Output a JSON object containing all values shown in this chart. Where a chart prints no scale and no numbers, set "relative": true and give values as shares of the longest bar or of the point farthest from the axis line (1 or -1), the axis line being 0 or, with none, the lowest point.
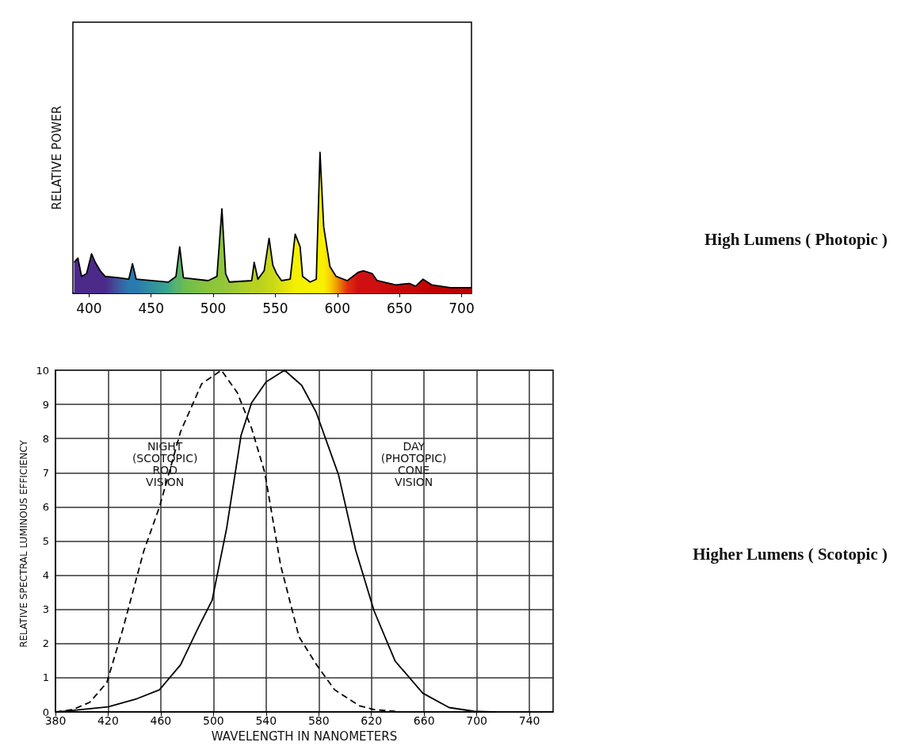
{
  "chart_data": [
    {
      "type": "area",
      "ylabel": "RELATIVE POWER",
      "relative": true,
      "xlim": [
        387,
        708
      ],
      "xticks": [
        400,
        450,
        500,
        550,
        600,
        650,
        700
      ],
      "marker": "none",
      "annotations": [
        "High Lumens ( Photopic )"
      ],
      "x": [
        388,
        391,
        394,
        398,
        402,
        405,
        409,
        413,
        424,
        432,
        435,
        438,
        464,
        470,
        473,
        476,
        496,
        503,
        507,
        510,
        513,
        531,
        533,
        536,
        541,
        545,
        548,
        551,
        555,
        562,
        566,
        570,
        572,
        578,
        583,
        586,
        589,
        594,
        599,
        608,
        617,
        621,
        628,
        632,
        647,
        658,
        663,
        669,
        676,
        691,
        708
      ],
      "series": [
        {
          "color": "#000000",
          "values": [
            0.22,
            0.25,
            0.12,
            0.14,
            0.28,
            0.22,
            0.16,
            0.12,
            0.11,
            0.1,
            0.21,
            0.1,
            0.08,
            0.12,
            0.33,
            0.11,
            0.09,
            0.12,
            0.6,
            0.14,
            0.08,
            0.09,
            0.22,
            0.1,
            0.16,
            0.39,
            0.2,
            0.14,
            0.09,
            0.1,
            0.42,
            0.33,
            0.12,
            0.08,
            0.1,
            1.0,
            0.47,
            0.19,
            0.12,
            0.09,
            0.15,
            0.16,
            0.14,
            0.09,
            0.06,
            0.07,
            0.05,
            0.1,
            0.06,
            0.04,
            0.04
          ],
          "colors": [
            "#4b2a8a",
            "#4b2a8a",
            "#4b2a8a",
            "#4b2a8a",
            "#4b2a8a",
            "#4b2a8a",
            "#4b2a8a",
            "#4b2a8a",
            "#3c5aa0",
            "#2a7ab0",
            "#2a7ab0",
            "#2a7ab0",
            "#3aa88a",
            "#5ab46a",
            "#5ab46a",
            "#6abc50",
            "#8ac43a",
            "#90c63a",
            "#90c63a",
            "#98c838",
            "#98c838",
            "#b8d020",
            "#b8d020",
            "#b8d020",
            "#c0d41c",
            "#c8d818",
            "#c8d818",
            "#d0dc14",
            "#dce00e",
            "#ece808",
            "#f5f000",
            "#f5f000",
            "#f5f000",
            "#f8f000",
            "#f8f000",
            "#f8f000",
            "#f8f000",
            "#f8d000",
            "#f0a000",
            "#e03010",
            "#d01010",
            "#d01010",
            "#d01010",
            "#d01010",
            "#c80808",
            "#c80808",
            "#c80808",
            "#c40404",
            "#c00000",
            "#c00000",
            "#c00000"
          ]
        }
      ]
    },
    {
      "type": "line",
      "xlabel": "WAVELENGTH IN NANOMETERS",
      "ylabel": "RELATIVE SPECTRAL LUMINOUS EFFICIENCY",
      "xlim": [
        380,
        758
      ],
      "xticks": [
        380,
        420,
        460,
        500,
        540,
        580,
        620,
        660,
        700,
        740
      ],
      "ylim": [
        0,
        10
      ],
      "yticks": [
        0,
        1,
        2,
        3,
        4,
        5,
        6,
        7,
        8,
        9,
        10
      ],
      "grid": true,
      "marker": "none",
      "annotations": [
        "NIGHT\n(SCOTOPIC)\nROD\nVISION",
        "DAY\n(PHOTOPIC)\nCONE\nVISION",
        "Higher Lumens ( Scotopic )"
      ],
      "series": [
        {
          "color": "#000000",
          "line_style": "dashed",
          "x": [
            380,
            393,
            406,
            419,
            431,
            447,
            459,
            475,
            491,
            506,
            518,
            529,
            539,
            551,
            565,
            578,
            592,
            611,
            622,
            638
          ],
          "values": [
            0,
            0.07,
            0.28,
            0.86,
            2.4,
            4.7,
            6.0,
            8.2,
            9.6,
            10,
            9.35,
            8.3,
            7.0,
            4.3,
            2.2,
            1.4,
            0.65,
            0.18,
            0.07,
            0.02
          ]
        },
        {
          "color": "#000000",
          "line_style": "solid",
          "x": [
            381,
            420,
            442,
            459,
            475,
            488,
            499,
            510,
            521,
            529,
            540,
            554,
            567,
            578,
            595,
            608,
            622,
            638,
            659,
            679,
            698,
            715
          ],
          "values": [
            0,
            0.15,
            0.39,
            0.65,
            1.38,
            2.43,
            3.27,
            5.37,
            8.1,
            9.05,
            9.66,
            10,
            9.56,
            8.77,
            6.94,
            4.74,
            2.96,
            1.49,
            0.55,
            0.13,
            0.02,
            0
          ]
        }
      ]
    }
  ]
}
